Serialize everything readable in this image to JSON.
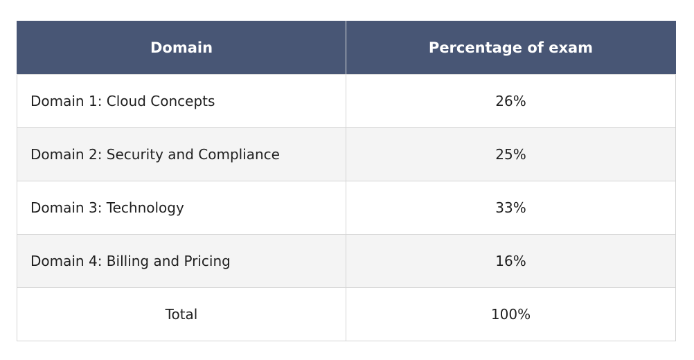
{
  "table": {
    "headers": {
      "domain": "Domain",
      "percentage": "Percentage of exam"
    },
    "rows": [
      {
        "domain": "Domain 1: Cloud Concepts",
        "percentage": "26%"
      },
      {
        "domain": "Domain 2: Security and Compliance",
        "percentage": "25%"
      },
      {
        "domain": "Domain 3: Technology",
        "percentage": "33%"
      },
      {
        "domain": "Domain 4: Billing and Pricing",
        "percentage": "16%"
      }
    ],
    "total": {
      "label": "Total",
      "percentage": "100%"
    }
  },
  "colors": {
    "header_background": "#485675",
    "header_text": "#ffffff",
    "row_alt_background": "#f4f4f4",
    "border": "#d4d4d4"
  }
}
